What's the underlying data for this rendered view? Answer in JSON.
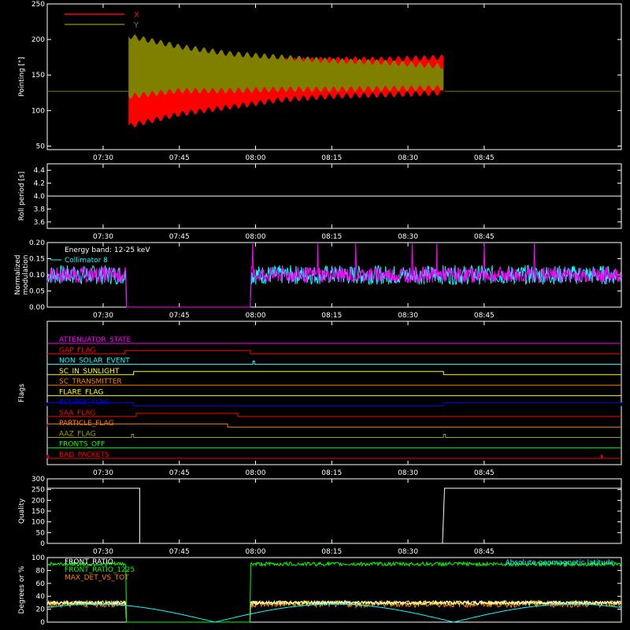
{
  "colors": {
    "background": "#000000",
    "axis": "#ffffff",
    "red": "#ff0000",
    "olive": "#808000",
    "cyan": "#00ffff",
    "magenta": "#ff00ff",
    "white": "#ffffff",
    "yellow": "#ffff00",
    "orange": "#ff8000",
    "green": "#00ff00",
    "blue": "#0000ff",
    "olive_light": "#a0a000"
  },
  "chart_data": [
    {
      "id": "pointing",
      "type": "area",
      "xlabel": "",
      "ylabel": "Pointing [\"]",
      "xlim_minutes": [
        19,
        132
      ],
      "ylim": [
        45,
        250
      ],
      "yticks": [
        50,
        100,
        150,
        200,
        250
      ],
      "xticks": [
        "07:30",
        "07:45",
        "08:00",
        "08:15",
        "08:30",
        "08:45"
      ],
      "xtick_minutes": [
        30,
        45,
        60,
        75,
        90,
        105
      ],
      "legend": [
        {
          "name": "X",
          "color": "#ff0000"
        },
        {
          "name": "Y",
          "color": "#808000"
        }
      ],
      "flat_level": 127,
      "data_start_minute": 35.0,
      "data_end_minute": 97.2,
      "x_envelope": {
        "minutes": [
          35,
          45,
          55,
          65,
          75,
          85,
          97
        ],
        "upper": [
          126,
          145,
          158,
          170,
          172,
          172,
          175
        ],
        "lower": [
          78,
          95,
          105,
          115,
          120,
          122,
          125
        ]
      },
      "y_envelope": {
        "minutes": [
          35,
          45,
          55,
          65,
          75,
          85,
          97
        ],
        "upper": [
          205,
          190,
          180,
          175,
          170,
          168,
          162
        ],
        "lower": [
          120,
          128,
          128,
          130,
          130,
          131,
          132
        ]
      }
    },
    {
      "id": "roll-period",
      "type": "line",
      "ylabel": "Roll period [s]",
      "ylim": [
        3.5,
        4.5
      ],
      "yticks": [
        "3.6",
        "3.8",
        "4.0",
        "4.2",
        "4.4"
      ],
      "ytick_values": [
        3.6,
        3.8,
        4.0,
        4.2,
        4.4
      ],
      "xticks": [
        "07:30",
        "07:45",
        "08:00",
        "08:15",
        "08:30",
        "08:45"
      ],
      "value": 4.0
    },
    {
      "id": "modulation",
      "type": "line",
      "ylabel": "Normalized modulation",
      "ylabel_lines": [
        "Normalized",
        "modulation"
      ],
      "ylim": [
        0,
        0.2
      ],
      "yticks": [
        "0.00",
        "0.05",
        "0.10",
        "0.15",
        "0.20"
      ],
      "ytick_values": [
        0,
        0.05,
        0.1,
        0.15,
        0.2
      ],
      "xticks": [
        "07:30",
        "07:45",
        "08:00",
        "08:15",
        "08:30",
        "08:45"
      ],
      "annotation": "Energy band: 12-25 keV",
      "legend": [
        {
          "name": "Collimator 8",
          "color": "#00ffff"
        }
      ],
      "gaps_minutes": [
        [
          34.5,
          59.0
        ]
      ],
      "mean_level": 0.1
    },
    {
      "id": "flags",
      "type": "line",
      "ylabel": "Flags",
      "xticks": [
        "07:30",
        "07:45",
        "08:00",
        "08:15",
        "08:30",
        "08:45"
      ],
      "series": [
        {
          "name": "ATTENUATOR_STATE",
          "color": "#ff00ff",
          "high": []
        },
        {
          "name": "GAP_FLAG",
          "color": "#ff0000",
          "high": [
            [
              34.3,
              59.0
            ]
          ]
        },
        {
          "name": "NON_SOLAR_EVENT",
          "color": "#00ffff",
          "high": [
            [
              59.5,
              59.8
            ]
          ]
        },
        {
          "name": "SC_IN_SUNLIGHT",
          "color": "#ffff00",
          "high": [
            [
              36.0,
              97.0
            ]
          ],
          "base_high": false
        },
        {
          "name": "SC_TRANSMITTER",
          "color": "#ff8000",
          "high": []
        },
        {
          "name": "FLARE_FLAG",
          "color": "#ffff00",
          "high": []
        },
        {
          "name": "ECLIPSE_FLAG",
          "color": "#0000ff",
          "high": [
            [
              19,
              36.0
            ],
            [
              97.0,
              132
            ]
          ]
        },
        {
          "name": "SAA_FLAG",
          "color": "#ff0000",
          "high": [
            [
              36.5,
              56.5
            ]
          ]
        },
        {
          "name": "PARTICLE_FLAG",
          "color": "#ff8000",
          "high": [
            [
              19,
              54.5
            ]
          ]
        },
        {
          "name": "AAZ_FLAG",
          "color": "#a0a000",
          "high": [
            [
              35.6,
              36.0
            ],
            [
              97.0,
              97.4
            ]
          ]
        },
        {
          "name": "FRONTS_OFF",
          "color": "#00ff00",
          "high": []
        },
        {
          "name": "BAD_PACKETS",
          "color": "#ff0000",
          "high": [
            [
              19,
              19.2
            ],
            [
              128.0,
              128.2
            ]
          ]
        }
      ]
    },
    {
      "id": "quality",
      "type": "line",
      "ylabel": "Quality",
      "ylim": [
        0,
        300
      ],
      "yticks": [
        "0",
        "50",
        "100",
        "150",
        "200",
        "250",
        "300"
      ],
      "ytick_values": [
        0,
        50,
        100,
        150,
        200,
        250,
        300
      ],
      "xticks": [
        "07:30",
        "07:45",
        "08:00",
        "08:15",
        "08:30",
        "08:45"
      ],
      "points_minutes": [
        19,
        37.2,
        37.2,
        96.8,
        97.2,
        132
      ],
      "points_values": [
        256,
        256,
        0,
        0,
        256,
        256
      ]
    },
    {
      "id": "front-ratio",
      "type": "line",
      "ylabel": "Degrees or %",
      "ylim": [
        0,
        100
      ],
      "yticks": [
        "0",
        "20",
        "40",
        "60",
        "80",
        "100"
      ],
      "ytick_values": [
        0,
        20,
        40,
        60,
        80,
        100
      ],
      "legend": [
        {
          "name": "FRONT_RATIO",
          "color": "#ffffff"
        },
        {
          "name": "FRONT_RATIO_1225",
          "color": "#00ff00"
        },
        {
          "name": "MAX_DET_VS_TOT",
          "color": "#ff8000"
        }
      ],
      "annotation_right": "Absolute geomagnetic latitude",
      "annotation_color": "#00ffff",
      "gaps_minutes": [
        [
          34.5,
          59.0
        ]
      ],
      "green_level": 90,
      "white_level": 30,
      "orange_level": 28,
      "latitude_peak": 28
    }
  ]
}
